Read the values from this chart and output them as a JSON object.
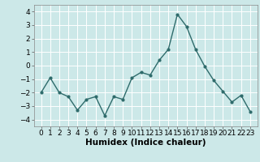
{
  "x": [
    0,
    1,
    2,
    3,
    4,
    5,
    6,
    7,
    8,
    9,
    10,
    11,
    12,
    13,
    14,
    15,
    16,
    17,
    18,
    19,
    20,
    21,
    22,
    23
  ],
  "y": [
    -2.0,
    -0.9,
    -2.0,
    -2.3,
    -3.3,
    -2.5,
    -2.3,
    -3.7,
    -2.3,
    -2.5,
    -0.9,
    -0.5,
    -0.7,
    0.4,
    1.2,
    3.8,
    2.9,
    1.2,
    -0.05,
    -1.1,
    -1.9,
    -2.7,
    -2.2,
    -3.4
  ],
  "line_color": "#2e6b6b",
  "marker": "o",
  "marker_size": 2.0,
  "linewidth": 1.0,
  "bg_color": "#cce8e8",
  "grid_color": "#ffffff",
  "xlabel": "Humidex (Indice chaleur)",
  "xlabel_fontsize": 7.5,
  "tick_fontsize": 6.5,
  "ylim": [
    -4.5,
    4.5
  ],
  "yticks": [
    -4,
    -3,
    -2,
    -1,
    0,
    1,
    2,
    3,
    4
  ],
  "xticks": [
    0,
    1,
    2,
    3,
    4,
    5,
    6,
    7,
    8,
    9,
    10,
    11,
    12,
    13,
    14,
    15,
    16,
    17,
    18,
    19,
    20,
    21,
    22,
    23
  ]
}
